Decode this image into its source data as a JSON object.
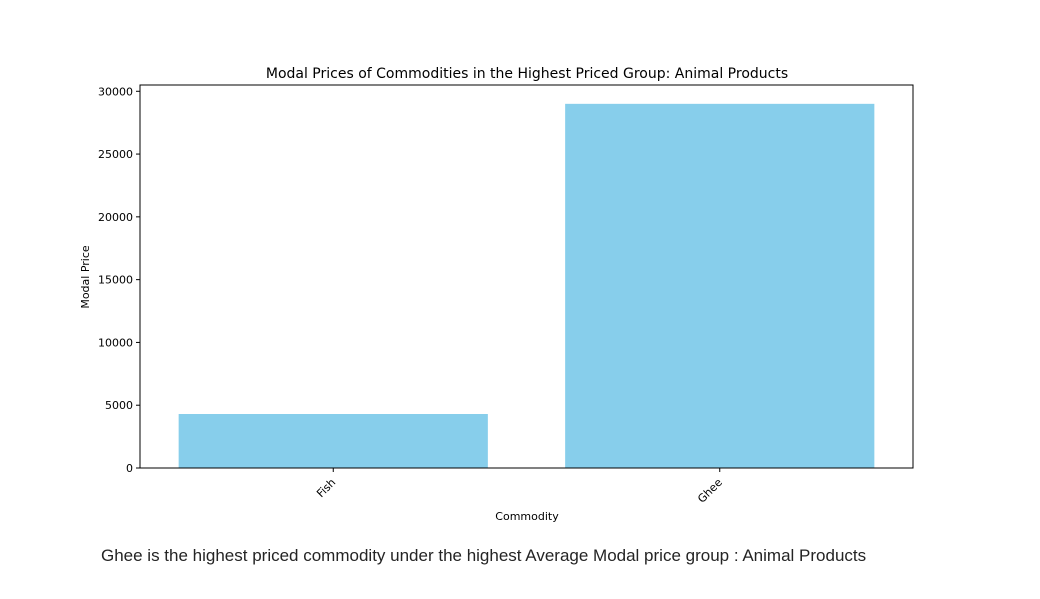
{
  "chart_data": {
    "type": "bar",
    "title": "Modal Prices of Commodities in the Highest Priced Group: Animal Products",
    "xlabel": "Commodity",
    "ylabel": "Modal Price",
    "categories": [
      "Fish",
      "Ghee"
    ],
    "values": [
      4300,
      29000
    ],
    "ylim": [
      0,
      30500
    ],
    "yticks": [
      0,
      5000,
      10000,
      15000,
      20000,
      25000,
      30000
    ],
    "bar_color": "#87ceeb",
    "grid": false,
    "legend": "none"
  },
  "caption": "Ghee is the highest priced commodity under the highest Average Modal price group : Animal Products"
}
